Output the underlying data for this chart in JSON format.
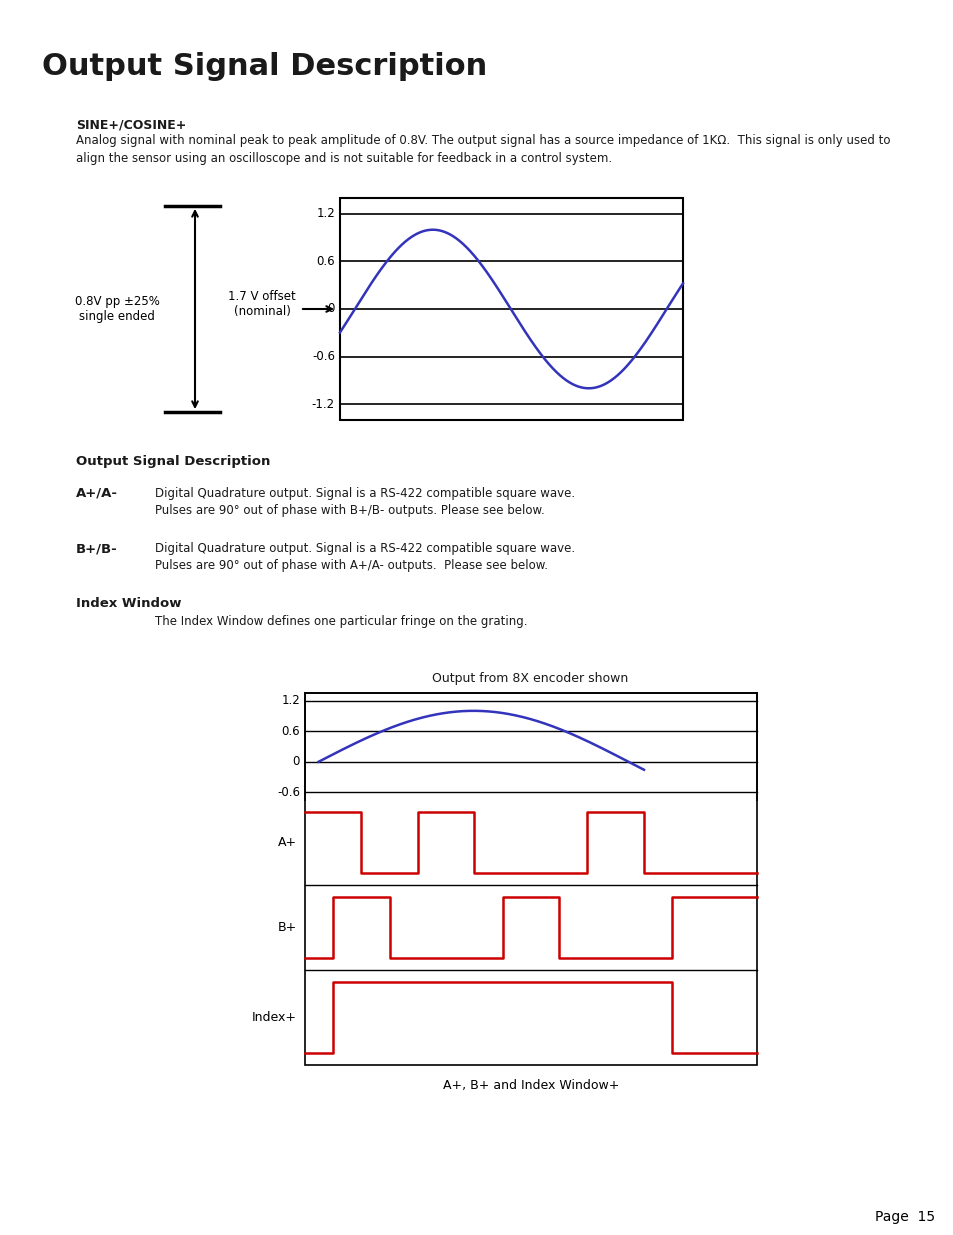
{
  "title": "Output Signal Description",
  "bg_color": "#ffffff",
  "text_color": "#1a1a1a",
  "sine_label": "SINE+/COSINE+",
  "sine_desc": "Analog signal with nominal peak to peak amplitude of 0.8V. The output signal has a source impedance of 1KΩ.  This signal is only used to\nalign the sensor using an oscilloscope and is not suitable for feedback in a control system.",
  "label_08v": "0.8V pp ±25%\nsingle ended",
  "label_17v": "1.7 V offset\n(nominal)",
  "sine_yticks": [
    1.2,
    0.6,
    0,
    -0.6,
    -1.2
  ],
  "output_section_title": "Output Signal Description",
  "a_label": "A+/A-",
  "a_text_line1": "Digital Quadrature output. Signal is a RS-422 compatible square wave.",
  "a_text_line2": "Pulses are 90° out of phase with B+/B- outputs. Please see below.",
  "b_label": "B+/B-",
  "b_text_line1": "Digital Quadrature output. Signal is a RS-422 compatible square wave.",
  "b_text_line2": "Pulses are 90° out of phase with A+/A- outputs.  Please see below.",
  "index_title": "Index Window",
  "index_desc": "The Index Window defines one particular fringe on the grating.",
  "encoder_title": "Output from 8X encoder shown",
  "encoder_yticks": [
    1.2,
    0.6,
    0,
    -0.6
  ],
  "bottom_label": "A+, B+ and Index Window+",
  "page_label": "Page  15",
  "sine_color": "#3333bb",
  "square_color": "#cc0000"
}
